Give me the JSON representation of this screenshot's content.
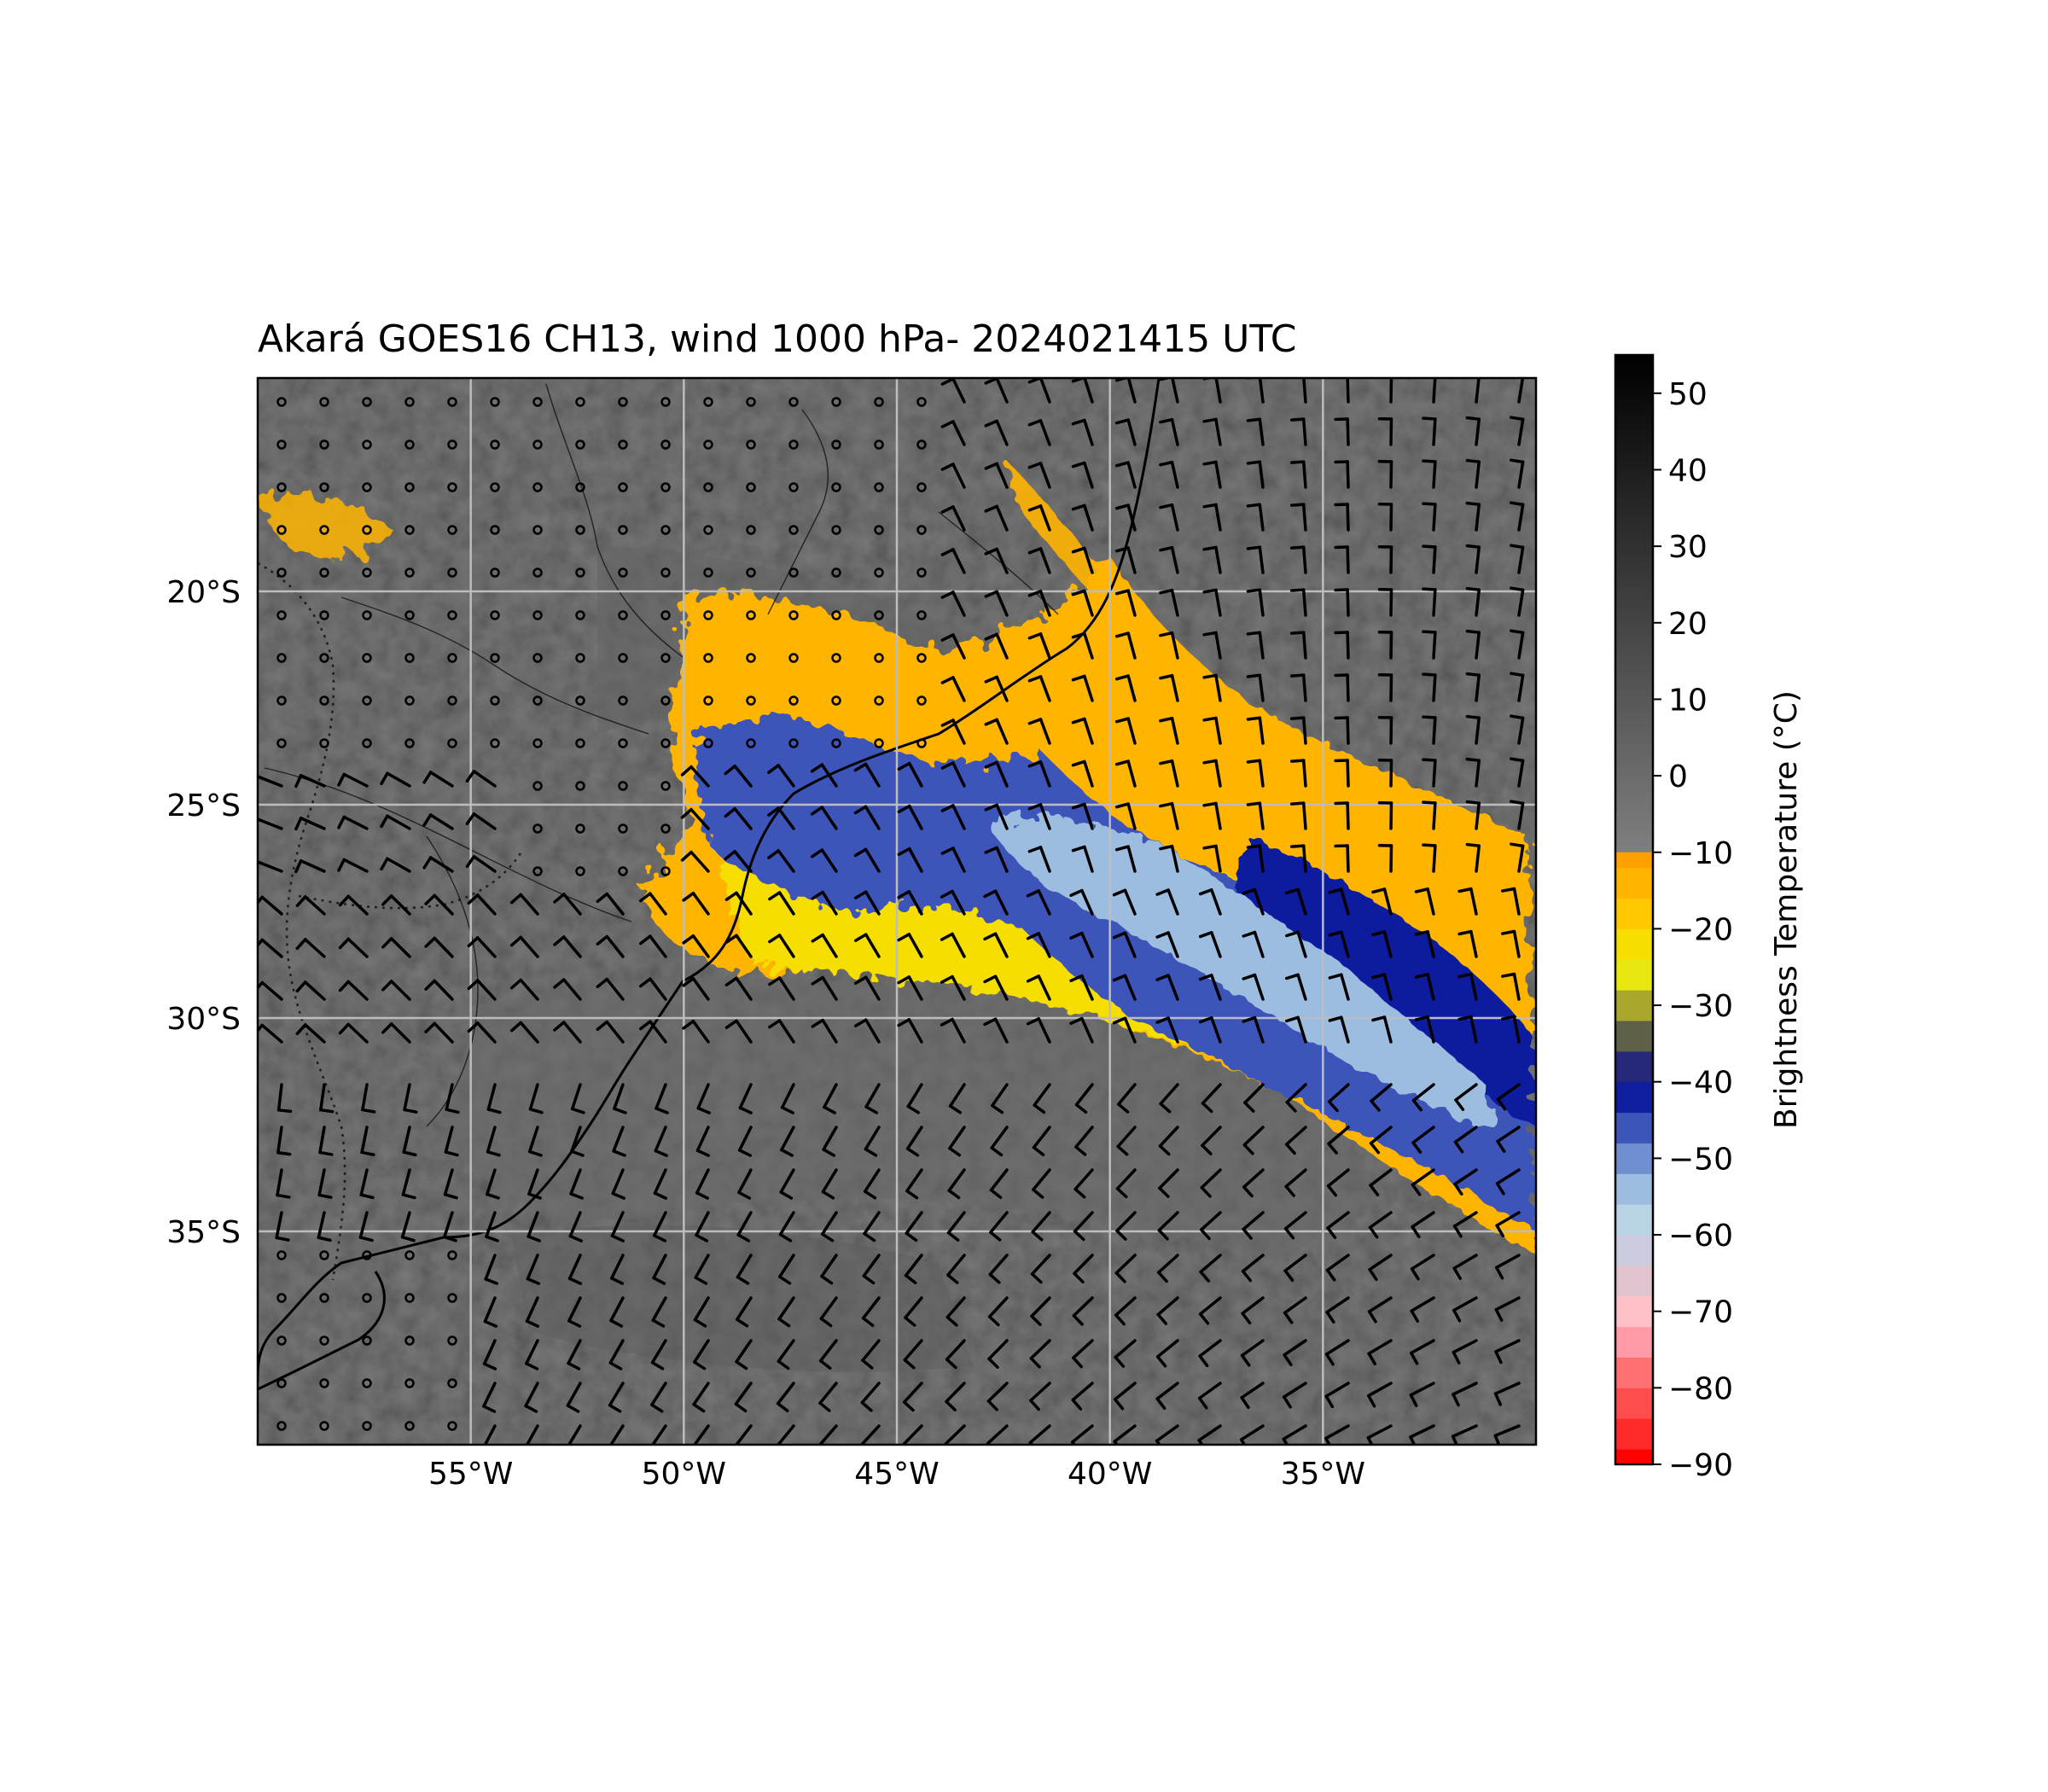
{
  "title": "Akará GOES16 CH13, wind 1000 hPa- 2024021415 UTC",
  "map": {
    "lon_range": [
      -60,
      -30
    ],
    "lat_range": [
      -40,
      -15
    ],
    "lon_ticks": [
      {
        "value": -55,
        "label": "55°W"
      },
      {
        "value": -50,
        "label": "50°W"
      },
      {
        "value": -45,
        "label": "45°W"
      },
      {
        "value": -40,
        "label": "40°W"
      },
      {
        "value": -35,
        "label": "35°W"
      }
    ],
    "lat_ticks": [
      {
        "value": -20,
        "label": "20°S"
      },
      {
        "value": -25,
        "label": "25°S"
      },
      {
        "value": -30,
        "label": "30°S"
      },
      {
        "value": -35,
        "label": "35°S"
      }
    ],
    "gridlines": true,
    "background_color": "#4a4a4a"
  },
  "colorbar": {
    "label": "Brightness Temperature (°C)",
    "range": [
      -90,
      55
    ],
    "ticks": [
      {
        "value": 50,
        "label": "50"
      },
      {
        "value": 40,
        "label": "40"
      },
      {
        "value": 30,
        "label": "30"
      },
      {
        "value": 20,
        "label": "20"
      },
      {
        "value": 10,
        "label": "10"
      },
      {
        "value": 0,
        "label": "0"
      },
      {
        "value": -10,
        "label": "−10"
      },
      {
        "value": -20,
        "label": "−20"
      },
      {
        "value": -30,
        "label": "−30"
      },
      {
        "value": -40,
        "label": "−40"
      },
      {
        "value": -50,
        "label": "−50"
      },
      {
        "value": -60,
        "label": "−60"
      },
      {
        "value": -70,
        "label": "−70"
      },
      {
        "value": -80,
        "label": "−80"
      },
      {
        "value": -90,
        "label": "−90"
      }
    ],
    "color_steps": [
      {
        "from": -90,
        "to": -88,
        "color": "#ff0000"
      },
      {
        "from": -88,
        "to": -84,
        "color": "#ff2a2a"
      },
      {
        "from": -84,
        "to": -80,
        "color": "#ff4d4d"
      },
      {
        "from": -80,
        "to": -76,
        "color": "#ff7070"
      },
      {
        "from": -76,
        "to": -72,
        "color": "#ff9aa6"
      },
      {
        "from": -72,
        "to": -68,
        "color": "#ffc0c8"
      },
      {
        "from": -68,
        "to": -64,
        "color": "#e2c4d0"
      },
      {
        "from": -64,
        "to": -60,
        "color": "#cccce0"
      },
      {
        "from": -60,
        "to": -56,
        "color": "#b9d4e4"
      },
      {
        "from": -56,
        "to": -52,
        "color": "#9cbde0"
      },
      {
        "from": -52,
        "to": -48,
        "color": "#6f8fd0"
      },
      {
        "from": -48,
        "to": -44,
        "color": "#3d54b8"
      },
      {
        "from": -44,
        "to": -40,
        "color": "#0f1e9f"
      },
      {
        "from": -40,
        "to": -36,
        "color": "#26287a"
      },
      {
        "from": -36,
        "to": -32,
        "color": "#5f6048"
      },
      {
        "from": -32,
        "to": -28,
        "color": "#a9a72c"
      },
      {
        "from": -28,
        "to": -24,
        "color": "#e8e810"
      },
      {
        "from": -24,
        "to": -20,
        "color": "#f6de00"
      },
      {
        "from": -20,
        "to": -16,
        "color": "#ffc800"
      },
      {
        "from": -16,
        "to": -12,
        "color": "#ffb400"
      },
      {
        "from": -12,
        "to": -10,
        "color": "#ffa000"
      }
    ],
    "gray_range": [
      -10,
      55
    ],
    "gray_colors": [
      "#7f7f7f",
      "#000000"
    ]
  },
  "colors": {
    "cloud_warm": "#ffb400",
    "cloud_yellow": "#f6de00",
    "cloud_blue": "#3d54b8",
    "cloud_deep": "#0f1e9f",
    "cloud_pale": "#9cbde0",
    "gridline": "#bdbdbd",
    "coast": "#000000"
  },
  "wind_barbs": {
    "level": "1000 hPa",
    "field_description": "calm circles over the northwest land region; westerly/northwesterly barbs over the central band; southerly barbs over the southern Atlantic"
  }
}
